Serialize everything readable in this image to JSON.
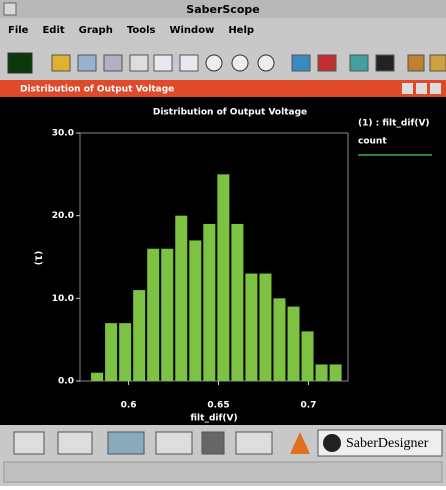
{
  "window": {
    "title": "SaberScope",
    "menu": [
      "File",
      "Edit",
      "Graph",
      "Tools",
      "Window",
      "Help"
    ]
  },
  "subwindow": {
    "title": "Distribution of Output Voltage"
  },
  "chart_data": {
    "type": "histogram",
    "title": "Distribution of Output Voltage",
    "x_label": "filt_dif(V)",
    "y_label": "(1)",
    "legend": {
      "title": "(1) : filt_dif(V)",
      "label": "count"
    },
    "color": "#7dc242",
    "legend_color": "#3cb04a",
    "bins": [
      0.5786,
      0.5864,
      0.5942,
      0.602,
      0.6098,
      0.6176,
      0.6254,
      0.6332,
      0.641,
      0.6488,
      0.6566,
      0.6644,
      0.6722,
      0.68,
      0.6878,
      0.6956,
      0.7034,
      0.7112,
      0.719
    ],
    "values": [
      1,
      7,
      7,
      11,
      16,
      16,
      20,
      17,
      19,
      25,
      19,
      13,
      13,
      10,
      9,
      6,
      2,
      2
    ],
    "xlim": [
      0.573,
      0.722
    ],
    "ylim": [
      0,
      30
    ],
    "xticks": [
      0.6,
      0.65,
      0.7
    ],
    "yticks": [
      {
        "value": 0,
        "label": "0.0"
      },
      {
        "value": 10,
        "label": "10.0"
      },
      {
        "value": 20,
        "label": "20.0"
      },
      {
        "value": 30,
        "label": "30.0"
      }
    ]
  },
  "toolbar": {
    "brand": "SaberDesigner"
  }
}
